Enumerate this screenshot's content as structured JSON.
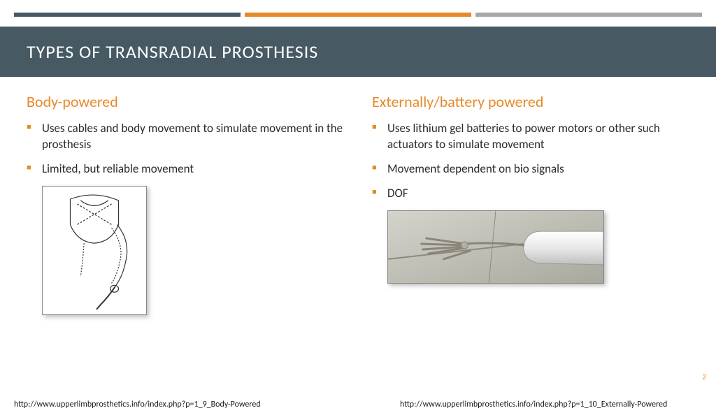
{
  "colors": {
    "bar1": "#475a63",
    "bar2": "#e58a2a",
    "bar3": "#a8a8a8",
    "accent": "#e58a2a",
    "heading": "#e58a2a",
    "bullet": "#e58a2a",
    "band_bg": "#475a63"
  },
  "title": "TYPES OF TRANSRADIAL PROSTHESIS",
  "left": {
    "heading": "Body-powered",
    "bullets": [
      "Uses cables and body movement to simulate movement in the prosthesis",
      "Limited, but reliable movement"
    ],
    "image_alt": "line-drawing-arm-harness"
  },
  "right": {
    "heading": "Externally/battery powered",
    "bullets": [
      "Uses lithium gel batteries to power motors or other such actuators to simulate movement",
      "Movement dependent on bio signals",
      "DOF"
    ],
    "image_alt": "robotic-prosthetic-hand-photo"
  },
  "footer": {
    "left": "http://www.upperlimbprosthetics.info/index.php?p=1_9_Body-Powered",
    "right": "http://www.upperlimbprosthetics.info/index.php?p=1_10_Externally-Powered"
  },
  "page_number": "2"
}
